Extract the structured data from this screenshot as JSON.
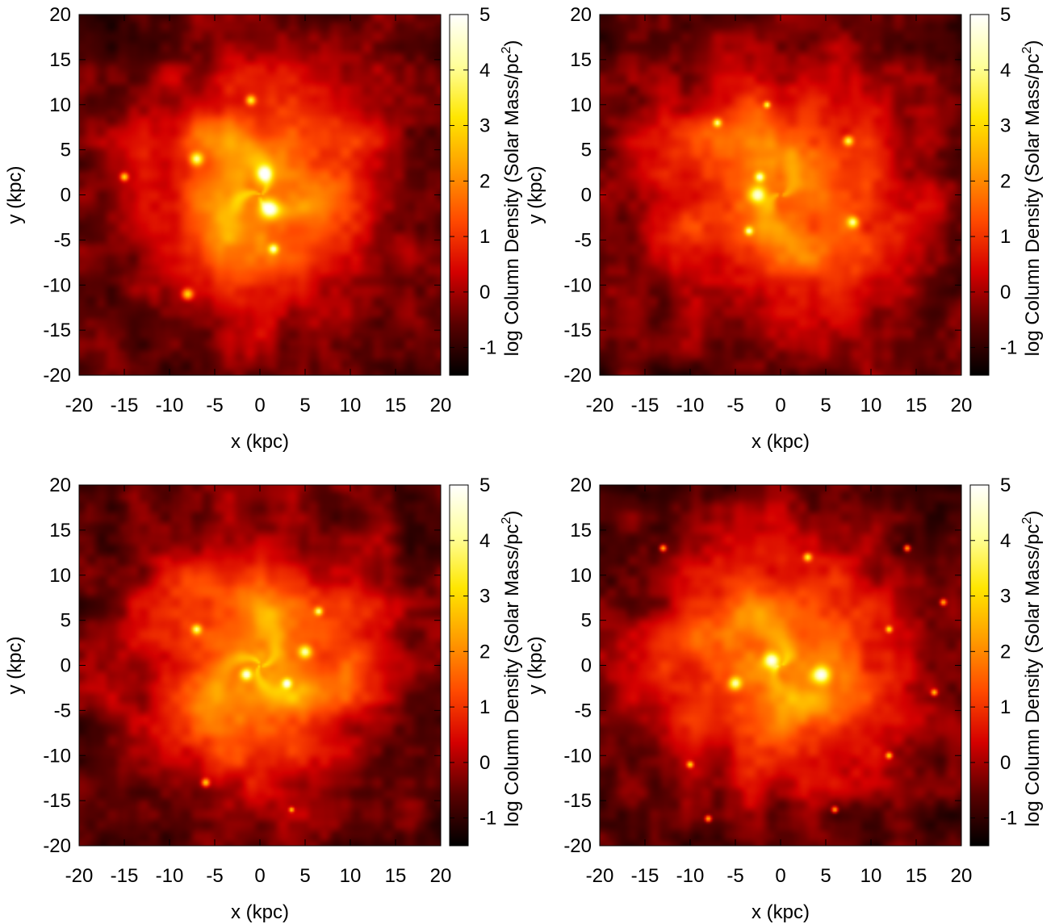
{
  "chart_data": [
    {
      "type": "heatmap",
      "xlabel": "x (kpc)",
      "ylabel": "y (kpc)",
      "xlim": [
        -20,
        20
      ],
      "ylim": [
        -20,
        20
      ],
      "xticks": [
        "-20",
        "-15",
        "-10",
        "-5",
        "0",
        "5",
        "10",
        "15",
        "20"
      ],
      "yticks": [
        "-20",
        "-15",
        "-10",
        "-5",
        "0",
        "5",
        "10",
        "15",
        "20"
      ],
      "colorbar": {
        "label": "log Column Density (Solar Mass/pc",
        "label_sup": "2",
        "label_end": ")",
        "range": [
          -1.5,
          5
        ],
        "ticks": [
          "-1",
          "0",
          "1",
          "2",
          "3",
          "4",
          "5"
        ]
      },
      "colormap": [
        "#000000",
        "#5a0000",
        "#d40000",
        "#ff4a00",
        "#ff9c00",
        "#ffe600",
        "#ffff9a",
        "#ffffff"
      ],
      "features": {
        "arms": 3,
        "twist": 1.0,
        "phase": 0.3,
        "clumps": [
          [
            1,
            -1.5,
            1.2
          ],
          [
            0.5,
            2.3,
            1.0
          ],
          [
            -7,
            4,
            0.8
          ],
          [
            -1,
            10.5,
            0.6
          ],
          [
            1.5,
            -6,
            0.6
          ],
          [
            -8,
            -11,
            0.7
          ],
          [
            -15,
            2,
            0.5
          ]
        ]
      }
    },
    {
      "type": "heatmap",
      "xlabel": "x (kpc)",
      "ylabel": "y (kpc)",
      "xlim": [
        -20,
        20
      ],
      "ylim": [
        -20,
        20
      ],
      "xticks": [
        "-20",
        "-15",
        "-10",
        "-5",
        "0",
        "5",
        "10",
        "15",
        "20"
      ],
      "yticks": [
        "-20",
        "-15",
        "-10",
        "-5",
        "0",
        "5",
        "10",
        "15",
        "20"
      ],
      "colorbar": {
        "label": "log Column Density (Solar Mass/pc",
        "label_sup": "2",
        "label_end": ")",
        "range": [
          -1.5,
          5
        ],
        "ticks": [
          "-1",
          "0",
          "1",
          "2",
          "3",
          "4",
          "5"
        ]
      },
      "colormap": [
        "#000000",
        "#5a0000",
        "#d40000",
        "#ff4a00",
        "#ff9c00",
        "#ffe600",
        "#ffff9a",
        "#ffffff"
      ],
      "features": {
        "arms": 2,
        "twist": 1.2,
        "phase": 1.4,
        "clumps": [
          [
            -2.5,
            0,
            1.0
          ],
          [
            -2.3,
            2,
            0.6
          ],
          [
            8,
            -3,
            0.7
          ],
          [
            7.5,
            6,
            0.6
          ],
          [
            -7,
            8,
            0.5
          ],
          [
            -1.5,
            10,
            0.4
          ],
          [
            -3.5,
            -4,
            0.5
          ]
        ]
      }
    },
    {
      "type": "heatmap",
      "xlabel": "x (kpc)",
      "ylabel": "y (kpc)",
      "xlim": [
        -20,
        20
      ],
      "ylim": [
        -20,
        20
      ],
      "xticks": [
        "-20",
        "-15",
        "-10",
        "-5",
        "0",
        "5",
        "10",
        "15",
        "20"
      ],
      "yticks": [
        "-20",
        "-15",
        "-10",
        "-5",
        "0",
        "5",
        "10",
        "15",
        "20"
      ],
      "colorbar": {
        "label": "log Column Density (Solar Mass/pc",
        "label_sup": "2",
        "label_end": ")",
        "range": [
          -1.5,
          5
        ],
        "ticks": [
          "-1",
          "0",
          "1",
          "2",
          "3",
          "4",
          "5"
        ]
      },
      "colormap": [
        "#000000",
        "#5a0000",
        "#d40000",
        "#ff4a00",
        "#ff9c00",
        "#ffe600",
        "#ffff9a",
        "#ffffff"
      ],
      "features": {
        "arms": 3,
        "twist": 1.1,
        "phase": 2.2,
        "clumps": [
          [
            5,
            1.5,
            0.8
          ],
          [
            -1.5,
            -1,
            0.7
          ],
          [
            3,
            -2,
            0.6
          ],
          [
            -7,
            4,
            0.6
          ],
          [
            6.5,
            6,
            0.5
          ],
          [
            -6,
            -13,
            0.5
          ],
          [
            3.5,
            -16,
            0.3
          ]
        ]
      }
    },
    {
      "type": "heatmap",
      "xlabel": "x (kpc)",
      "ylabel": "y (kpc)",
      "xlim": [
        -20,
        20
      ],
      "ylim": [
        -20,
        20
      ],
      "xticks": [
        "-20",
        "-15",
        "-10",
        "-5",
        "0",
        "5",
        "10",
        "15",
        "20"
      ],
      "yticks": [
        "-20",
        "-15",
        "-10",
        "-5",
        "0",
        "5",
        "10",
        "15",
        "20"
      ],
      "colorbar": {
        "label": "log Column Density (Solar Mass/pc",
        "label_sup": "2",
        "label_end": ")",
        "range": [
          -1.5,
          5
        ],
        "ticks": [
          "-1",
          "0",
          "1",
          "2",
          "3",
          "4",
          "5"
        ]
      },
      "colormap": [
        "#000000",
        "#5a0000",
        "#d40000",
        "#ff4a00",
        "#ff9c00",
        "#ffe600",
        "#ffff9a",
        "#ffffff"
      ],
      "features": {
        "arms": 2,
        "twist": 1.3,
        "phase": 0.8,
        "clumps": [
          [
            -1,
            0.5,
            1.0
          ],
          [
            4.5,
            -1,
            1.1
          ],
          [
            -5,
            -2,
            0.8
          ],
          [
            3,
            12,
            0.5
          ],
          [
            -13,
            13,
            0.4
          ],
          [
            12,
            -10,
            0.4
          ],
          [
            -8,
            -17,
            0.4
          ],
          [
            6,
            -16,
            0.4
          ],
          [
            18,
            7,
            0.4
          ],
          [
            17,
            -3,
            0.4
          ],
          [
            14,
            13,
            0.4
          ],
          [
            -10,
            -11,
            0.4
          ],
          [
            12,
            4,
            0.4
          ]
        ]
      }
    }
  ]
}
